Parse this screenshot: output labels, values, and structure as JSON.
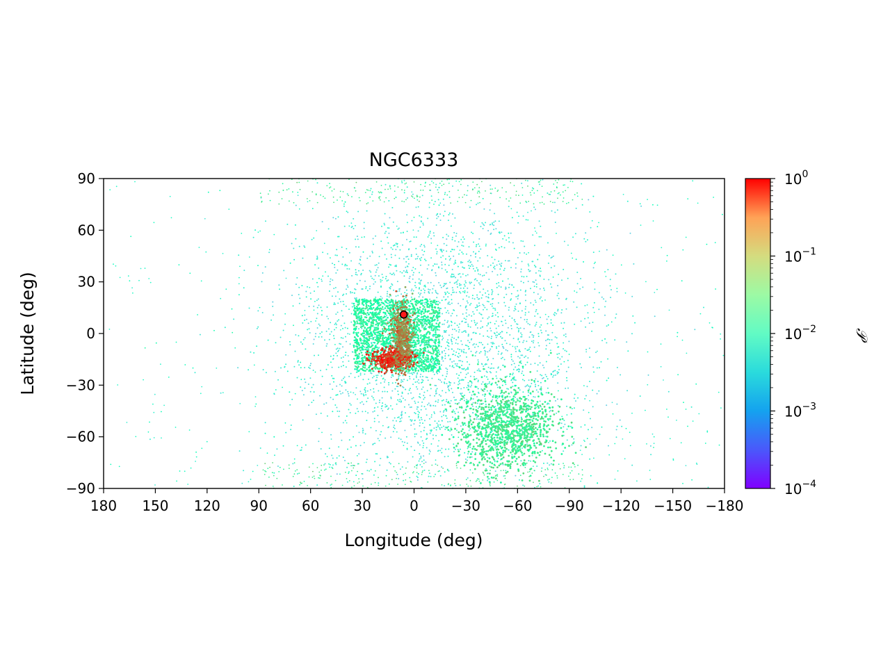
{
  "chart_data": {
    "type": "scatter",
    "title": "NGC6333",
    "xlabel": "Longitude (deg)",
    "ylabel": "Latitude (deg)",
    "xlim": [
      180,
      -180
    ],
    "ylim": [
      -90,
      90
    ],
    "x_ticks": [
      {
        "value": 180,
        "label": "180"
      },
      {
        "value": 150,
        "label": "150"
      },
      {
        "value": 120,
        "label": "120"
      },
      {
        "value": 90,
        "label": "90"
      },
      {
        "value": 60,
        "label": "60"
      },
      {
        "value": 30,
        "label": "30"
      },
      {
        "value": 0,
        "label": "0"
      },
      {
        "value": -30,
        "label": "−30"
      },
      {
        "value": -60,
        "label": "−60"
      },
      {
        "value": -90,
        "label": "−90"
      },
      {
        "value": -120,
        "label": "−120"
      },
      {
        "value": -150,
        "label": "−150"
      },
      {
        "value": -180,
        "label": "−180"
      }
    ],
    "y_ticks": [
      {
        "value": 90,
        "label": "90"
      },
      {
        "value": 60,
        "label": "60"
      },
      {
        "value": 30,
        "label": "30"
      },
      {
        "value": 0,
        "label": "0"
      },
      {
        "value": -30,
        "label": "−30"
      },
      {
        "value": -60,
        "label": "−60"
      },
      {
        "value": -90,
        "label": "−90"
      }
    ],
    "grid": false,
    "colormap": "rainbow",
    "colorbar": {
      "label": "𝒫",
      "scale": "log",
      "range": [
        0.0001,
        1
      ],
      "ticks": [
        {
          "value": 1,
          "base": "10",
          "exp": "0"
        },
        {
          "value": 0.1,
          "base": "10",
          "exp": "−1"
        },
        {
          "value": 0.01,
          "base": "10",
          "exp": "−2"
        },
        {
          "value": 0.001,
          "base": "10",
          "exp": "−3"
        },
        {
          "value": 0.0001,
          "base": "10",
          "exp": "−4"
        }
      ]
    },
    "cluster_marker": {
      "lon": 6,
      "lat": 11,
      "color": "#ff1a1a"
    },
    "scatter_regions": [
      {
        "name": "broad halo",
        "lon_center": -15,
        "lat_center": -5,
        "lon_spread": 45,
        "lat_spread": 42,
        "prob": 0.003
      },
      {
        "name": "southern tail",
        "lon_center": -55,
        "lat_center": -55,
        "lon_spread": 14,
        "lat_spread": 12,
        "prob": 0.03
      },
      {
        "name": "central box",
        "lon_min": -15,
        "lon_max": 35,
        "lat_min": -22,
        "lat_max": 20,
        "prob": 0.02
      },
      {
        "name": "dense core",
        "lon_center": 12,
        "lat_center": -15,
        "lon_spread": 6,
        "lat_spread": 3,
        "prob": 0.6
      },
      {
        "name": "stream arc",
        "lon_center": 7,
        "lat_center": -2,
        "lon_spread": 3,
        "lat_spread": 10,
        "prob": 0.2
      },
      {
        "name": "polar band",
        "lat_abs_min": 75,
        "prob": 0.03
      },
      {
        "name": "sparse outer field",
        "lon_range": [
          -180,
          180
        ],
        "lat_range": [
          -90,
          90
        ],
        "prob": 0.006
      }
    ]
  }
}
